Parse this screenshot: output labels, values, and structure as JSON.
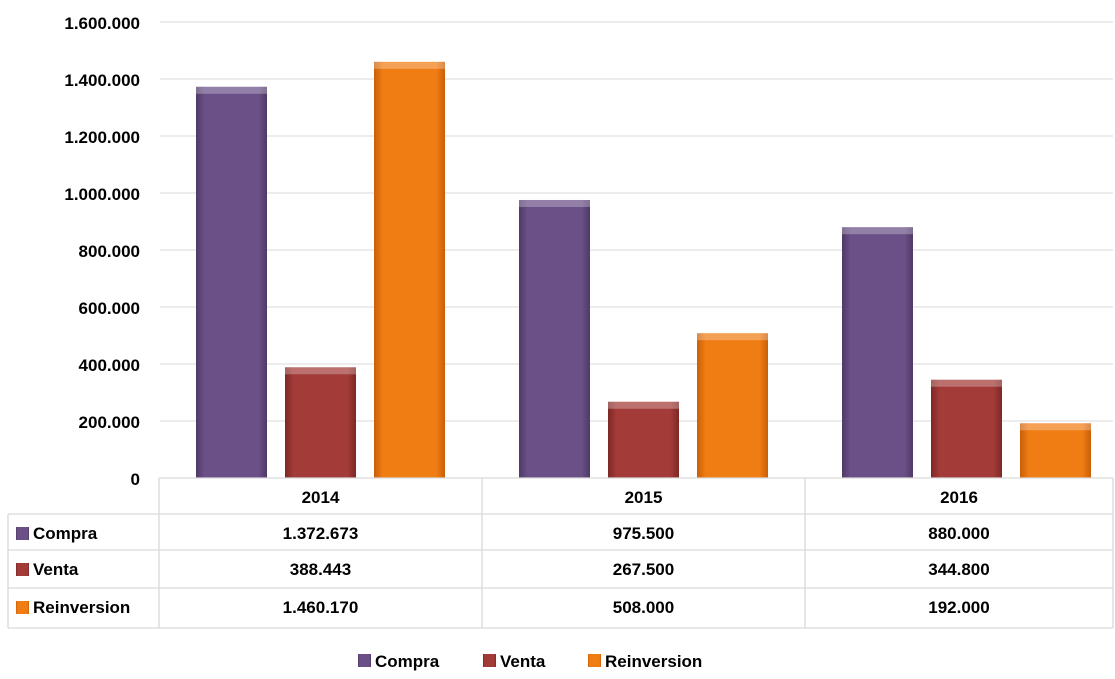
{
  "chart_data": {
    "type": "bar",
    "categories": [
      "2014",
      "2015",
      "2016"
    ],
    "series": [
      {
        "name": "Compra",
        "values": [
          1372673,
          975500,
          880000
        ],
        "color": "#6a5087"
      },
      {
        "name": "Venta",
        "values": [
          388443,
          267500,
          344800
        ],
        "color": "#a33b38"
      },
      {
        "name": "Reinversion",
        "values": [
          1460170,
          508000,
          192000
        ],
        "color": "#f07c14"
      }
    ],
    "yticks": [
      "0",
      "200.000",
      "400.000",
      "600.000",
      "800.000",
      "1.000.000",
      "1.200.000",
      "1.400.000",
      "1.600.000"
    ],
    "ylim": [
      0,
      1600000
    ],
    "grid": true,
    "data_table": [
      [
        "1.372.673",
        "975.500",
        "880.000"
      ],
      [
        "388.443",
        "267.500",
        "344.800"
      ],
      [
        "1.460.170",
        "508.000",
        "192.000"
      ]
    ],
    "legend_position": "bottom"
  }
}
